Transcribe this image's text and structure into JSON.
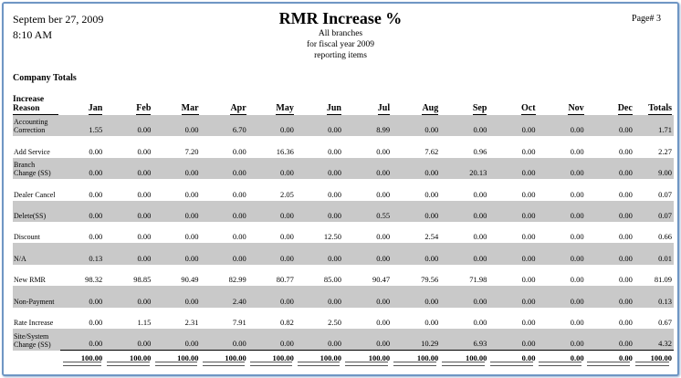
{
  "header": {
    "date": "Septem ber 27, 2009",
    "time": "8:10 AM",
    "title": "RMR Increase %",
    "subtitle_lines": [
      "All branches",
      "for fiscal year 2009",
      "reporting items"
    ],
    "page_label": "Page#  3"
  },
  "section_title": "Company Totals",
  "table": {
    "columns": [
      "Increase Reason",
      "Jan",
      "Feb",
      "Mar",
      "Apr",
      "May",
      "Jun",
      "Jul",
      "Aug",
      "Sep",
      "Oct",
      "Nov",
      "Dec",
      "Totals"
    ],
    "rows": [
      {
        "reason": "Accounting Correction",
        "values": [
          "1.55",
          "0.00",
          "0.00",
          "6.70",
          "0.00",
          "0.00",
          "8.99",
          "0.00",
          "0.00",
          "0.00",
          "0.00",
          "0.00",
          "1.71"
        ]
      },
      {
        "reason": "Add Service",
        "values": [
          "0.00",
          "0.00",
          "7.20",
          "0.00",
          "16.36",
          "0.00",
          "0.00",
          "7.62",
          "0.96",
          "0.00",
          "0.00",
          "0.00",
          "2.27"
        ]
      },
      {
        "reason": "Branch Change (SS)",
        "values": [
          "0.00",
          "0.00",
          "0.00",
          "0.00",
          "0.00",
          "0.00",
          "0.00",
          "0.00",
          "20.13",
          "0.00",
          "0.00",
          "0.00",
          "9.00"
        ]
      },
      {
        "reason": "Dealer Cancel",
        "values": [
          "0.00",
          "0.00",
          "0.00",
          "0.00",
          "2.05",
          "0.00",
          "0.00",
          "0.00",
          "0.00",
          "0.00",
          "0.00",
          "0.00",
          "0.07"
        ]
      },
      {
        "reason": "Delete(SS)",
        "values": [
          "0.00",
          "0.00",
          "0.00",
          "0.00",
          "0.00",
          "0.00",
          "0.55",
          "0.00",
          "0.00",
          "0.00",
          "0.00",
          "0.00",
          "0.07"
        ]
      },
      {
        "reason": "Discount",
        "values": [
          "0.00",
          "0.00",
          "0.00",
          "0.00",
          "0.00",
          "12.50",
          "0.00",
          "2.54",
          "0.00",
          "0.00",
          "0.00",
          "0.00",
          "0.66"
        ]
      },
      {
        "reason": "N/A",
        "values": [
          "0.13",
          "0.00",
          "0.00",
          "0.00",
          "0.00",
          "0.00",
          "0.00",
          "0.00",
          "0.00",
          "0.00",
          "0.00",
          "0.00",
          "0.01"
        ]
      },
      {
        "reason": "New RMR",
        "values": [
          "98.32",
          "98.85",
          "90.49",
          "82.99",
          "80.77",
          "85.00",
          "90.47",
          "79.56",
          "71.98",
          "0.00",
          "0.00",
          "0.00",
          "81.09"
        ]
      },
      {
        "reason": "Non-Payment",
        "values": [
          "0.00",
          "0.00",
          "0.00",
          "2.40",
          "0.00",
          "0.00",
          "0.00",
          "0.00",
          "0.00",
          "0.00",
          "0.00",
          "0.00",
          "0.13"
        ]
      },
      {
        "reason": "Rate Increase",
        "values": [
          "0.00",
          "1.15",
          "2.31",
          "7.91",
          "0.82",
          "2.50",
          "0.00",
          "0.00",
          "0.00",
          "0.00",
          "0.00",
          "0.00",
          "0.67"
        ]
      },
      {
        "reason": "Site/System Change (SS)",
        "values": [
          "0.00",
          "0.00",
          "0.00",
          "0.00",
          "0.00",
          "0.00",
          "0.00",
          "10.29",
          "6.93",
          "0.00",
          "0.00",
          "0.00",
          "4.32"
        ]
      }
    ],
    "totals": [
      "100.00",
      "100.00",
      "100.00",
      "100.00",
      "100.00",
      "100.00",
      "100.00",
      "100.00",
      "100.00",
      "0.00",
      "0.00",
      "0.00",
      "100.00"
    ]
  }
}
